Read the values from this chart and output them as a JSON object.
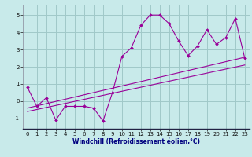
{
  "background_color": "#c8eaea",
  "grid_color": "#a0c8c8",
  "line_color": "#990099",
  "x_ticks": [
    0,
    1,
    2,
    3,
    4,
    5,
    6,
    7,
    8,
    9,
    10,
    11,
    12,
    13,
    14,
    15,
    16,
    17,
    18,
    19,
    20,
    21,
    22,
    23
  ],
  "y_ticks": [
    -1,
    0,
    1,
    2,
    3,
    4,
    5
  ],
  "ylim": [
    -1.6,
    5.6
  ],
  "xlim": [
    -0.5,
    23.5
  ],
  "xlabel": "Windchill (Refroidissement éolien,°C)",
  "series1_x": [
    0,
    1,
    2,
    3,
    4,
    5,
    6,
    7,
    8,
    9,
    10,
    11,
    12,
    13,
    14,
    15,
    16,
    17,
    18,
    19,
    20,
    21,
    22,
    23
  ],
  "series1_y": [
    0.8,
    -0.3,
    0.2,
    -1.1,
    -0.3,
    -0.3,
    -0.3,
    -0.4,
    -1.15,
    0.5,
    2.6,
    3.1,
    4.4,
    5.0,
    5.0,
    4.5,
    3.5,
    2.65,
    3.2,
    4.15,
    3.3,
    3.7,
    4.8,
    2.5
  ],
  "series2_x": [
    0,
    23
  ],
  "series2_y": [
    -0.4,
    2.55
  ],
  "series3_x": [
    0,
    23
  ],
  "series3_y": [
    -0.6,
    2.1
  ],
  "xlabel_color": "#000080",
  "xlabel_fontsize": 5.5,
  "tick_fontsize": 5,
  "marker_size": 2.0
}
